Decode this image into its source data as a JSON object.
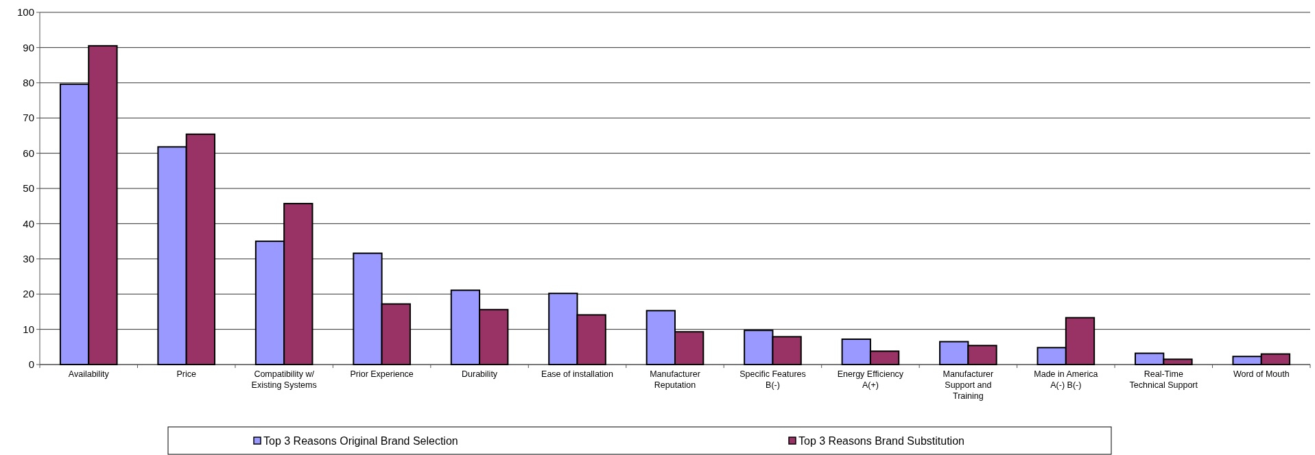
{
  "chart_data": {
    "type": "bar",
    "categories": [
      "Availability",
      "Price",
      "Compatibility w/ Existing Systems",
      "Prior Experience",
      "Durability",
      "Ease of installation",
      "Manufacturer Reputation",
      "Specific Features B(-)",
      "Energy Efficiency A(+)",
      "Manufacturer Support and Training",
      "Made in America A(-) B(-)",
      "Real-Time Technical Support",
      "Word of Mouth"
    ],
    "series": [
      {
        "name": "Top 3 Reasons  Original Brand Selection",
        "color": "#9999ff",
        "values": [
          79.6,
          61.8,
          35,
          31.6,
          21.1,
          20.2,
          15.3,
          9.7,
          7.2,
          6.5,
          4.8,
          3.2,
          2.3
        ]
      },
      {
        "name": "Top 3 Reasons Brand Substitution",
        "color": "#993366",
        "values": [
          90.5,
          65.4,
          45.7,
          17.2,
          15.6,
          14.1,
          9.3,
          7.9,
          3.8,
          5.4,
          13.3,
          1.5,
          3.0
        ]
      }
    ],
    "ylim": [
      0,
      100
    ],
    "yticks": [
      0,
      10,
      20,
      30,
      40,
      50,
      60,
      70,
      80,
      90,
      100
    ],
    "grid": "y",
    "legend": "bottom"
  }
}
